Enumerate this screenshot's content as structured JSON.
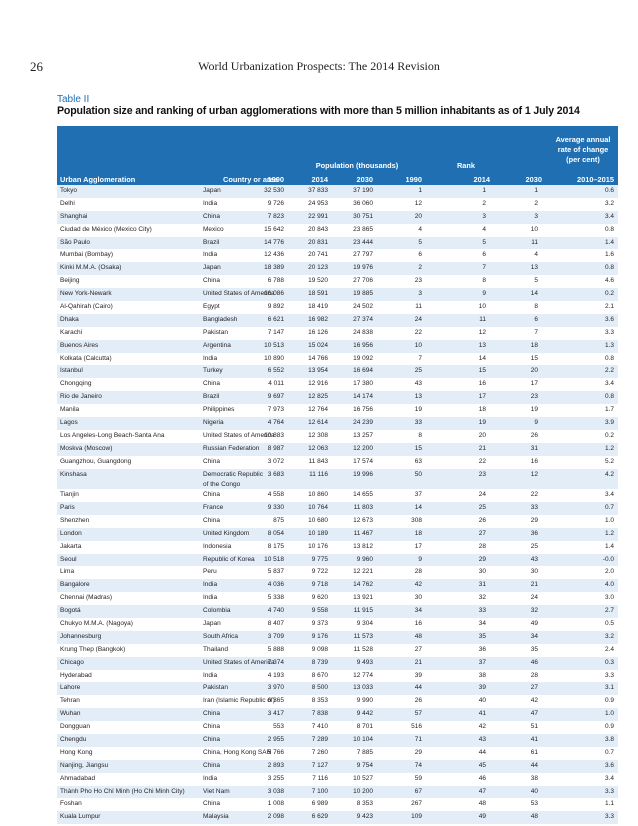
{
  "header": {
    "page_number": "26",
    "running_title": "World Urbanization Prospects:  The 2014 Revision"
  },
  "table": {
    "label": "Table II",
    "caption": "Population size and ranking of urban agglomerations with more than 5 million inhabitants as of 1 July 2014",
    "head": {
      "avg_rate": "Average annual rate of change (per cent)",
      "population_group": "Population (thousands)",
      "rank_group": "Rank",
      "col_agglomeration": "Urban Agglomeration",
      "col_country": "Country or area",
      "col_p1990": "1990",
      "col_p2014": "2014",
      "col_p2030": "2030",
      "col_r1990": "1990",
      "col_r2014": "2014",
      "col_r2030": "2030",
      "col_rate": "2010–2015"
    },
    "rows": [
      {
        "name": "Tokyo",
        "country": "Japan",
        "p1990": "32 530",
        "p2014": "37 833",
        "p2030": "37 190",
        "r1990": "1",
        "r2014": "1",
        "r2030": "1",
        "rate": "0.6"
      },
      {
        "name": "Delhi",
        "country": "India",
        "p1990": "9 726",
        "p2014": "24 953",
        "p2030": "36 060",
        "r1990": "12",
        "r2014": "2",
        "r2030": "2",
        "rate": "3.2"
      },
      {
        "name": "Shanghai",
        "country": "China",
        "p1990": "7 823",
        "p2014": "22 991",
        "p2030": "30 751",
        "r1990": "20",
        "r2014": "3",
        "r2030": "3",
        "rate": "3.4"
      },
      {
        "name": "Ciudad de México (Mexico City)",
        "country": "Mexico",
        "p1990": "15 642",
        "p2014": "20 843",
        "p2030": "23 865",
        "r1990": "4",
        "r2014": "4",
        "r2030": "10",
        "rate": "0.8"
      },
      {
        "name": "São Paulo",
        "country": "Brazil",
        "p1990": "14 776",
        "p2014": "20 831",
        "p2030": "23 444",
        "r1990": "5",
        "r2014": "5",
        "r2030": "11",
        "rate": "1.4"
      },
      {
        "name": "Mumbai (Bombay)",
        "country": "India",
        "p1990": "12 436",
        "p2014": "20 741",
        "p2030": "27 797",
        "r1990": "6",
        "r2014": "6",
        "r2030": "4",
        "rate": "1.6"
      },
      {
        "name": "Kinki M.M.A. (Osaka)",
        "country": "Japan",
        "p1990": "18 389",
        "p2014": "20 123",
        "p2030": "19 976",
        "r1990": "2",
        "r2014": "7",
        "r2030": "13",
        "rate": "0.8"
      },
      {
        "name": "Beijing",
        "country": "China",
        "p1990": "6 788",
        "p2014": "19 520",
        "p2030": "27 706",
        "r1990": "23",
        "r2014": "8",
        "r2030": "5",
        "rate": "4.6"
      },
      {
        "name": "New York-Newark",
        "country": "United States of America",
        "p1990": "16 086",
        "p2014": "18 591",
        "p2030": "19 885",
        "r1990": "3",
        "r2014": "9",
        "r2030": "14",
        "rate": "0.2"
      },
      {
        "name": "Al-Qahirah (Cairo)",
        "country": "Egypt",
        "p1990": "9 892",
        "p2014": "18 419",
        "p2030": "24 502",
        "r1990": "11",
        "r2014": "10",
        "r2030": "8",
        "rate": "2.1"
      },
      {
        "name": "Dhaka",
        "country": "Bangladesh",
        "p1990": "6 621",
        "p2014": "16 982",
        "p2030": "27 374",
        "r1990": "24",
        "r2014": "11",
        "r2030": "6",
        "rate": "3.6"
      },
      {
        "name": "Karachi",
        "country": "Pakistan",
        "p1990": "7 147",
        "p2014": "16 126",
        "p2030": "24 838",
        "r1990": "22",
        "r2014": "12",
        "r2030": "7",
        "rate": "3.3"
      },
      {
        "name": "Buenos Aires",
        "country": "Argentina",
        "p1990": "10 513",
        "p2014": "15 024",
        "p2030": "16 956",
        "r1990": "10",
        "r2014": "13",
        "r2030": "18",
        "rate": "1.3"
      },
      {
        "name": "Kolkata (Calcutta)",
        "country": "India",
        "p1990": "10 890",
        "p2014": "14 766",
        "p2030": "19 092",
        "r1990": "7",
        "r2014": "14",
        "r2030": "15",
        "rate": "0.8"
      },
      {
        "name": "Istanbul",
        "country": "Turkey",
        "p1990": "6 552",
        "p2014": "13 954",
        "p2030": "16 694",
        "r1990": "25",
        "r2014": "15",
        "r2030": "20",
        "rate": "2.2"
      },
      {
        "name": "Chongqing",
        "country": "China",
        "p1990": "4 011",
        "p2014": "12 916",
        "p2030": "17 380",
        "r1990": "43",
        "r2014": "16",
        "r2030": "17",
        "rate": "3.4"
      },
      {
        "name": "Rio de Janeiro",
        "country": "Brazil",
        "p1990": "9 697",
        "p2014": "12 825",
        "p2030": "14 174",
        "r1990": "13",
        "r2014": "17",
        "r2030": "23",
        "rate": "0.8"
      },
      {
        "name": "Manila",
        "country": "Philippines",
        "p1990": "7 973",
        "p2014": "12 764",
        "p2030": "16 756",
        "r1990": "19",
        "r2014": "18",
        "r2030": "19",
        "rate": "1.7"
      },
      {
        "name": "Lagos",
        "country": "Nigeria",
        "p1990": "4 764",
        "p2014": "12 614",
        "p2030": "24 239",
        "r1990": "33",
        "r2014": "19",
        "r2030": "9",
        "rate": "3.9"
      },
      {
        "name": "Los Angeles-Long Beach-Santa Ana",
        "country": "United States of America",
        "p1990": "10 883",
        "p2014": "12 308",
        "p2030": "13 257",
        "r1990": "8",
        "r2014": "20",
        "r2030": "26",
        "rate": "0.2"
      },
      {
        "name": "Moskva (Moscow)",
        "country": "Russian Federation",
        "p1990": "8 987",
        "p2014": "12 063",
        "p2030": "12 200",
        "r1990": "15",
        "r2014": "21",
        "r2030": "31",
        "rate": "1.2"
      },
      {
        "name": "Guangzhou, Guangdong",
        "country": "China",
        "p1990": "3 072",
        "p2014": "11 843",
        "p2030": "17 574",
        "r1990": "63",
        "r2014": "22",
        "r2030": "16",
        "rate": "5.2"
      },
      {
        "name": "Kinshasa",
        "country": "Democratic Republic",
        "country2": "of the Congo",
        "p1990": "3 683",
        "p2014": "11 116",
        "p2030": "19 996",
        "r1990": "50",
        "r2014": "23",
        "r2030": "12",
        "rate": "4.2"
      },
      {
        "name": "Tianjin",
        "country": "China",
        "p1990": "4 558",
        "p2014": "10 860",
        "p2030": "14 655",
        "r1990": "37",
        "r2014": "24",
        "r2030": "22",
        "rate": "3.4"
      },
      {
        "name": "Paris",
        "country": "France",
        "p1990": "9 330",
        "p2014": "10 764",
        "p2030": "11 803",
        "r1990": "14",
        "r2014": "25",
        "r2030": "33",
        "rate": "0.7"
      },
      {
        "name": "Shenzhen",
        "country": "China",
        "p1990": "875",
        "p2014": "10 680",
        "p2030": "12 673",
        "r1990": "308",
        "r2014": "26",
        "r2030": "29",
        "rate": "1.0"
      },
      {
        "name": "London",
        "country": "United Kingdom",
        "p1990": "8 054",
        "p2014": "10 189",
        "p2030": "11 467",
        "r1990": "18",
        "r2014": "27",
        "r2030": "36",
        "rate": "1.2"
      },
      {
        "name": "Jakarta",
        "country": "Indonesia",
        "p1990": "8 175",
        "p2014": "10 176",
        "p2030": "13 812",
        "r1990": "17",
        "r2014": "28",
        "r2030": "25",
        "rate": "1.4"
      },
      {
        "name": "Seoul",
        "country": "Republic of Korea",
        "p1990": "10 518",
        "p2014": "9 775",
        "p2030": "9 960",
        "r1990": "9",
        "r2014": "29",
        "r2030": "43",
        "rate": "-0.0"
      },
      {
        "name": "Lima",
        "country": "Peru",
        "p1990": "5 837",
        "p2014": "9 722",
        "p2030": "12 221",
        "r1990": "28",
        "r2014": "30",
        "r2030": "30",
        "rate": "2.0"
      },
      {
        "name": "Bangalore",
        "country": "India",
        "p1990": "4 036",
        "p2014": "9 718",
        "p2030": "14 762",
        "r1990": "42",
        "r2014": "31",
        "r2030": "21",
        "rate": "4.0"
      },
      {
        "name": "Chennai (Madras)",
        "country": "India",
        "p1990": "5 338",
        "p2014": "9 620",
        "p2030": "13 921",
        "r1990": "30",
        "r2014": "32",
        "r2030": "24",
        "rate": "3.0"
      },
      {
        "name": "Bogotá",
        "country": "Colombia",
        "p1990": "4 740",
        "p2014": "9 558",
        "p2030": "11 915",
        "r1990": "34",
        "r2014": "33",
        "r2030": "32",
        "rate": "2.7"
      },
      {
        "name": "Chukyo M.M.A. (Nagoya)",
        "country": "Japan",
        "p1990": "8 407",
        "p2014": "9 373",
        "p2030": "9 304",
        "r1990": "16",
        "r2014": "34",
        "r2030": "49",
        "rate": "0.5"
      },
      {
        "name": "Johannesburg",
        "country": "South Africa",
        "p1990": "3 709",
        "p2014": "9 176",
        "p2030": "11 573",
        "r1990": "48",
        "r2014": "35",
        "r2030": "34",
        "rate": "3.2"
      },
      {
        "name": "Krung Thep (Bangkok)",
        "country": "Thailand",
        "p1990": "5 888",
        "p2014": "9 098",
        "p2030": "11 528",
        "r1990": "27",
        "r2014": "36",
        "r2030": "35",
        "rate": "2.4"
      },
      {
        "name": "Chicago",
        "country": "United States of America",
        "p1990": "7 374",
        "p2014": "8 739",
        "p2030": "9 493",
        "r1990": "21",
        "r2014": "37",
        "r2030": "46",
        "rate": "0.3"
      },
      {
        "name": "Hyderabad",
        "country": "India",
        "p1990": "4 193",
        "p2014": "8 670",
        "p2030": "12 774",
        "r1990": "39",
        "r2014": "38",
        "r2030": "28",
        "rate": "3.3"
      },
      {
        "name": "Lahore",
        "country": "Pakistan",
        "p1990": "3 970",
        "p2014": "8 500",
        "p2030": "13 033",
        "r1990": "44",
        "r2014": "39",
        "r2030": "27",
        "rate": "3.1"
      },
      {
        "name": "Tehran",
        "country": "Iran (Islamic Republic of)",
        "p1990": "6 365",
        "p2014": "8 353",
        "p2030": "9 990",
        "r1990": "26",
        "r2014": "40",
        "r2030": "42",
        "rate": "0.9"
      },
      {
        "name": "Wuhan",
        "country": "China",
        "p1990": "3 417",
        "p2014": "7 838",
        "p2030": "9 442",
        "r1990": "57",
        "r2014": "41",
        "r2030": "47",
        "rate": "1.0"
      },
      {
        "name": "Dongguan",
        "country": "China",
        "p1990": "553",
        "p2014": "7 410",
        "p2030": "8 701",
        "r1990": "516",
        "r2014": "42",
        "r2030": "51",
        "rate": "0.9"
      },
      {
        "name": "Chengdu",
        "country": "China",
        "p1990": "2 955",
        "p2014": "7 289",
        "p2030": "10 104",
        "r1990": "71",
        "r2014": "43",
        "r2030": "41",
        "rate": "3.8"
      },
      {
        "name": "Hong Kong",
        "country": "China, Hong Kong SAR",
        "p1990": "5 766",
        "p2014": "7 260",
        "p2030": "7 885",
        "r1990": "29",
        "r2014": "44",
        "r2030": "61",
        "rate": "0.7"
      },
      {
        "name": "Nanjing, Jiangsu",
        "country": "China",
        "p1990": "2 893",
        "p2014": "7 127",
        "p2030": "9 754",
        "r1990": "74",
        "r2014": "45",
        "r2030": "44",
        "rate": "3.6"
      },
      {
        "name": "Ahmadabad",
        "country": "India",
        "p1990": "3 255",
        "p2014": "7 116",
        "p2030": "10 527",
        "r1990": "59",
        "r2014": "46",
        "r2030": "38",
        "rate": "3.4"
      },
      {
        "name": "Thành Pho Ho Chí Minh (Ho Chi Minh City)",
        "country": "Viet Nam",
        "p1990": "3 038",
        "p2014": "7 100",
        "p2030": "10 200",
        "r1990": "67",
        "r2014": "47",
        "r2030": "40",
        "rate": "3.3"
      },
      {
        "name": "Foshan",
        "country": "China",
        "p1990": "1 008",
        "p2014": "6 989",
        "p2030": "8 353",
        "r1990": "267",
        "r2014": "48",
        "r2030": "53",
        "rate": "1.1"
      },
      {
        "name": "Kuala Lumpur",
        "country": "Malaysia",
        "p1990": "2 098",
        "p2014": "6 629",
        "p2030": "9 423",
        "r1990": "109",
        "r2014": "49",
        "r2030": "48",
        "rate": "3.3"
      }
    ]
  }
}
